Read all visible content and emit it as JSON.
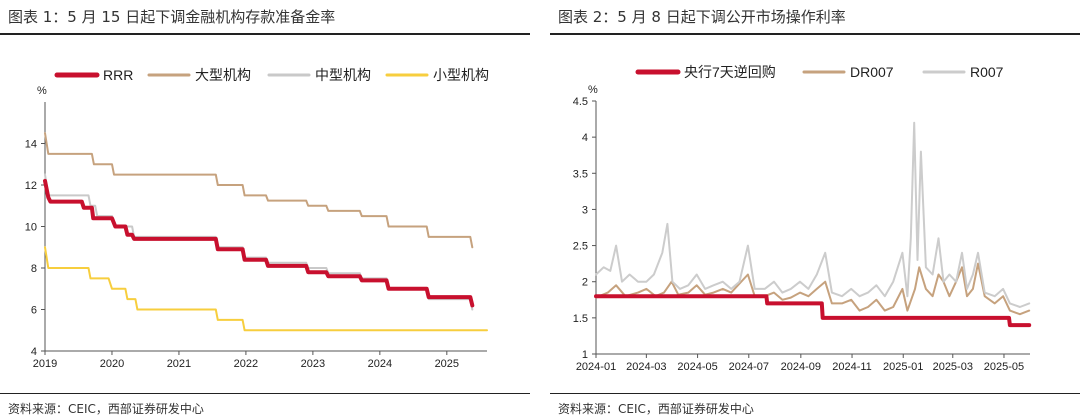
{
  "left": {
    "title": "图表 1：5 月 15 日起下调金融机构存款准备金率",
    "source": "资料来源：CEIC，西部证券研发中心",
    "chart_data": {
      "type": "line",
      "unit": "%",
      "ylim": [
        4,
        16
      ],
      "yticks": [
        4,
        6,
        8,
        10,
        12,
        14
      ],
      "xlim": [
        2019.0,
        2025.6
      ],
      "xticks": [
        2019,
        2020,
        2021,
        2022,
        2023,
        2024,
        2025
      ],
      "legend_position": "top",
      "series": [
        {
          "name": "RRR",
          "color": "#c8102e",
          "width": 4,
          "points": [
            [
              2019.0,
              12.2
            ],
            [
              2019.05,
              11.4
            ],
            [
              2019.08,
              11.2
            ],
            [
              2019.55,
              11.2
            ],
            [
              2019.58,
              10.9
            ],
            [
              2019.7,
              10.9
            ],
            [
              2019.72,
              10.4
            ],
            [
              2020.0,
              10.4
            ],
            [
              2020.05,
              10.0
            ],
            [
              2020.2,
              10.0
            ],
            [
              2020.23,
              9.6
            ],
            [
              2020.3,
              9.6
            ],
            [
              2020.33,
              9.4
            ],
            [
              2021.55,
              9.4
            ],
            [
              2021.58,
              8.9
            ],
            [
              2021.95,
              8.9
            ],
            [
              2021.98,
              8.4
            ],
            [
              2022.3,
              8.4
            ],
            [
              2022.33,
              8.1
            ],
            [
              2022.9,
              8.1
            ],
            [
              2022.93,
              7.8
            ],
            [
              2023.2,
              7.8
            ],
            [
              2023.23,
              7.6
            ],
            [
              2023.7,
              7.6
            ],
            [
              2023.73,
              7.4
            ],
            [
              2024.1,
              7.4
            ],
            [
              2024.13,
              7.0
            ],
            [
              2024.7,
              7.0
            ],
            [
              2024.73,
              6.6
            ],
            [
              2025.35,
              6.6
            ],
            [
              2025.38,
              6.2
            ]
          ]
        },
        {
          "name": "大型机构",
          "color": "#c6a27e",
          "width": 2,
          "points": [
            [
              2019.0,
              14.5
            ],
            [
              2019.05,
              13.5
            ],
            [
              2019.7,
              13.5
            ],
            [
              2019.73,
              13.0
            ],
            [
              2020.0,
              13.0
            ],
            [
              2020.03,
              12.5
            ],
            [
              2021.55,
              12.5
            ],
            [
              2021.58,
              12.0
            ],
            [
              2021.95,
              12.0
            ],
            [
              2021.98,
              11.5
            ],
            [
              2022.3,
              11.5
            ],
            [
              2022.33,
              11.25
            ],
            [
              2022.9,
              11.25
            ],
            [
              2022.93,
              11.0
            ],
            [
              2023.2,
              11.0
            ],
            [
              2023.23,
              10.75
            ],
            [
              2023.7,
              10.75
            ],
            [
              2023.73,
              10.5
            ],
            [
              2024.1,
              10.5
            ],
            [
              2024.13,
              10.0
            ],
            [
              2024.7,
              10.0
            ],
            [
              2024.73,
              9.5
            ],
            [
              2025.35,
              9.5
            ],
            [
              2025.38,
              9.0
            ]
          ]
        },
        {
          "name": "中型机构",
          "color": "#c9c9c9",
          "width": 2,
          "points": [
            [
              2019.0,
              12.5
            ],
            [
              2019.05,
              11.5
            ],
            [
              2019.65,
              11.5
            ],
            [
              2019.68,
              11.0
            ],
            [
              2019.75,
              11.0
            ],
            [
              2019.78,
              10.5
            ],
            [
              2020.0,
              10.5
            ],
            [
              2020.05,
              10.0
            ],
            [
              2020.3,
              10.0
            ],
            [
              2020.33,
              9.5
            ],
            [
              2021.55,
              9.5
            ],
            [
              2021.58,
              9.0
            ],
            [
              2021.95,
              9.0
            ],
            [
              2021.98,
              8.5
            ],
            [
              2022.3,
              8.5
            ],
            [
              2022.33,
              8.25
            ],
            [
              2022.9,
              8.25
            ],
            [
              2022.93,
              8.0
            ],
            [
              2023.2,
              8.0
            ],
            [
              2023.23,
              7.75
            ],
            [
              2023.7,
              7.75
            ],
            [
              2023.73,
              7.5
            ],
            [
              2024.1,
              7.5
            ],
            [
              2024.13,
              7.0
            ],
            [
              2024.7,
              7.0
            ],
            [
              2024.73,
              6.5
            ],
            [
              2025.35,
              6.5
            ],
            [
              2025.38,
              6.0
            ]
          ]
        },
        {
          "name": "小型机构",
          "color": "#f7ce3e",
          "width": 2,
          "points": [
            [
              2019.0,
              9.0
            ],
            [
              2019.05,
              8.0
            ],
            [
              2019.65,
              8.0
            ],
            [
              2019.68,
              7.5
            ],
            [
              2019.95,
              7.5
            ],
            [
              2020.0,
              7.0
            ],
            [
              2020.2,
              7.0
            ],
            [
              2020.23,
              6.5
            ],
            [
              2020.35,
              6.5
            ],
            [
              2020.38,
              6.0
            ],
            [
              2021.55,
              6.0
            ],
            [
              2021.58,
              5.5
            ],
            [
              2021.95,
              5.5
            ],
            [
              2021.98,
              5.0
            ],
            [
              2025.6,
              5.0
            ]
          ]
        }
      ]
    }
  },
  "right": {
    "title": "图表 2：5 月 8 日起下调公开市场操作利率",
    "source": "资料来源：CEIC，西部证券研发中心",
    "chart_data": {
      "type": "line",
      "unit": "%",
      "ylim": [
        1,
        4.5
      ],
      "yticks": [
        "1",
        "1.5",
        "2",
        "2.5",
        "3",
        "3.5",
        "4",
        "4.5"
      ],
      "xlim": [
        "2024-01",
        "2025-06"
      ],
      "xticks": [
        "2024-01",
        "2024-03",
        "2024-05",
        "2024-07",
        "2024-09",
        "2024-11",
        "2025-01",
        "2025-03",
        "2025-05"
      ],
      "legend_position": "top",
      "series": [
        {
          "name": "央行7天逆回购",
          "color": "#c8102e",
          "width": 4,
          "points": [
            [
              "2024-01-01",
              1.8
            ],
            [
              "2024-07-22",
              1.8
            ],
            [
              "2024-07-23",
              1.7
            ],
            [
              "2024-09-26",
              1.7
            ],
            [
              "2024-09-27",
              1.5
            ],
            [
              "2025-05-07",
              1.5
            ],
            [
              "2025-05-08",
              1.4
            ],
            [
              "2025-05-31",
              1.4
            ]
          ]
        },
        {
          "name": "DR007",
          "color": "#c6a27e",
          "width": 2,
          "points": [
            [
              "2024-01-01",
              1.78
            ],
            [
              "2024-01-15",
              1.85
            ],
            [
              "2024-01-25",
              1.95
            ],
            [
              "2024-02-05",
              1.8
            ],
            [
              "2024-02-20",
              1.85
            ],
            [
              "2024-03-01",
              1.9
            ],
            [
              "2024-03-12",
              1.8
            ],
            [
              "2024-03-22",
              1.85
            ],
            [
              "2024-03-31",
              2.0
            ],
            [
              "2024-04-08",
              1.82
            ],
            [
              "2024-04-20",
              1.85
            ],
            [
              "2024-04-30",
              1.95
            ],
            [
              "2024-05-10",
              1.82
            ],
            [
              "2024-05-20",
              1.85
            ],
            [
              "2024-05-31",
              1.9
            ],
            [
              "2024-06-10",
              1.85
            ],
            [
              "2024-06-30",
              2.1
            ],
            [
              "2024-07-08",
              1.8
            ],
            [
              "2024-07-20",
              1.8
            ],
            [
              "2024-07-31",
              1.85
            ],
            [
              "2024-08-10",
              1.75
            ],
            [
              "2024-08-20",
              1.78
            ],
            [
              "2024-08-31",
              1.85
            ],
            [
              "2024-09-10",
              1.8
            ],
            [
              "2024-09-20",
              1.9
            ],
            [
              "2024-09-30",
              2.0
            ],
            [
              "2024-10-08",
              1.7
            ],
            [
              "2024-10-20",
              1.7
            ],
            [
              "2024-10-31",
              1.75
            ],
            [
              "2024-11-10",
              1.6
            ],
            [
              "2024-11-20",
              1.65
            ],
            [
              "2024-11-30",
              1.75
            ],
            [
              "2024-12-10",
              1.6
            ],
            [
              "2024-12-20",
              1.65
            ],
            [
              "2024-12-31",
              1.9
            ],
            [
              "2025-01-06",
              1.6
            ],
            [
              "2025-01-15",
              1.9
            ],
            [
              "2025-01-20",
              2.2
            ],
            [
              "2025-01-28",
              1.9
            ],
            [
              "2025-02-05",
              1.8
            ],
            [
              "2025-02-12",
              2.1
            ],
            [
              "2025-02-18",
              2.0
            ],
            [
              "2025-02-25",
              1.8
            ],
            [
              "2025-03-05",
              2.0
            ],
            [
              "2025-03-12",
              2.2
            ],
            [
              "2025-03-18",
              1.8
            ],
            [
              "2025-03-25",
              1.9
            ],
            [
              "2025-03-31",
              2.25
            ],
            [
              "2025-04-08",
              1.8
            ],
            [
              "2025-04-20",
              1.7
            ],
            [
              "2025-04-30",
              1.8
            ],
            [
              "2025-05-08",
              1.6
            ],
            [
              "2025-05-20",
              1.55
            ],
            [
              "2025-05-31",
              1.6
            ]
          ]
        },
        {
          "name": "R007",
          "color": "#cccccc",
          "width": 2,
          "points": [
            [
              "2024-01-01",
              2.1
            ],
            [
              "2024-01-10",
              2.2
            ],
            [
              "2024-01-18",
              2.15
            ],
            [
              "2024-01-25",
              2.5
            ],
            [
              "2024-02-01",
              2.0
            ],
            [
              "2024-02-10",
              2.1
            ],
            [
              "2024-02-20",
              2.0
            ],
            [
              "2024-03-01",
              2.0
            ],
            [
              "2024-03-10",
              2.1
            ],
            [
              "2024-03-20",
              2.4
            ],
            [
              "2024-03-26",
              2.8
            ],
            [
              "2024-04-01",
              2.0
            ],
            [
              "2024-04-10",
              1.9
            ],
            [
              "2024-04-20",
              1.95
            ],
            [
              "2024-04-30",
              2.1
            ],
            [
              "2024-05-10",
              1.9
            ],
            [
              "2024-05-20",
              1.95
            ],
            [
              "2024-05-31",
              2.0
            ],
            [
              "2024-06-10",
              1.9
            ],
            [
              "2024-06-20",
              2.0
            ],
            [
              "2024-06-30",
              2.5
            ],
            [
              "2024-07-08",
              1.9
            ],
            [
              "2024-07-20",
              1.9
            ],
            [
              "2024-07-31",
              2.0
            ],
            [
              "2024-08-10",
              1.85
            ],
            [
              "2024-08-20",
              1.9
            ],
            [
              "2024-08-31",
              2.0
            ],
            [
              "2024-09-10",
              1.9
            ],
            [
              "2024-09-20",
              2.1
            ],
            [
              "2024-09-30",
              2.4
            ],
            [
              "2024-10-08",
              1.85
            ],
            [
              "2024-10-20",
              1.8
            ],
            [
              "2024-10-31",
              1.9
            ],
            [
              "2024-11-10",
              1.8
            ],
            [
              "2024-11-20",
              1.85
            ],
            [
              "2024-11-30",
              1.95
            ],
            [
              "2024-12-10",
              1.8
            ],
            [
              "2024-12-20",
              2.0
            ],
            [
              "2024-12-31",
              2.4
            ],
            [
              "2025-01-06",
              1.8
            ],
            [
              "2025-01-10",
              2.6
            ],
            [
              "2025-01-14",
              4.2
            ],
            [
              "2025-01-18",
              2.3
            ],
            [
              "2025-01-22",
              3.8
            ],
            [
              "2025-01-28",
              2.2
            ],
            [
              "2025-02-05",
              2.1
            ],
            [
              "2025-02-12",
              2.6
            ],
            [
              "2025-02-18",
              2.0
            ],
            [
              "2025-02-25",
              2.1
            ],
            [
              "2025-03-05",
              2.0
            ],
            [
              "2025-03-12",
              2.4
            ],
            [
              "2025-03-18",
              1.9
            ],
            [
              "2025-03-25",
              2.1
            ],
            [
              "2025-03-31",
              2.4
            ],
            [
              "2025-04-08",
              1.85
            ],
            [
              "2025-04-20",
              1.8
            ],
            [
              "2025-04-30",
              1.9
            ],
            [
              "2025-05-08",
              1.7
            ],
            [
              "2025-05-20",
              1.65
            ],
            [
              "2025-05-31",
              1.7
            ]
          ]
        }
      ]
    }
  }
}
